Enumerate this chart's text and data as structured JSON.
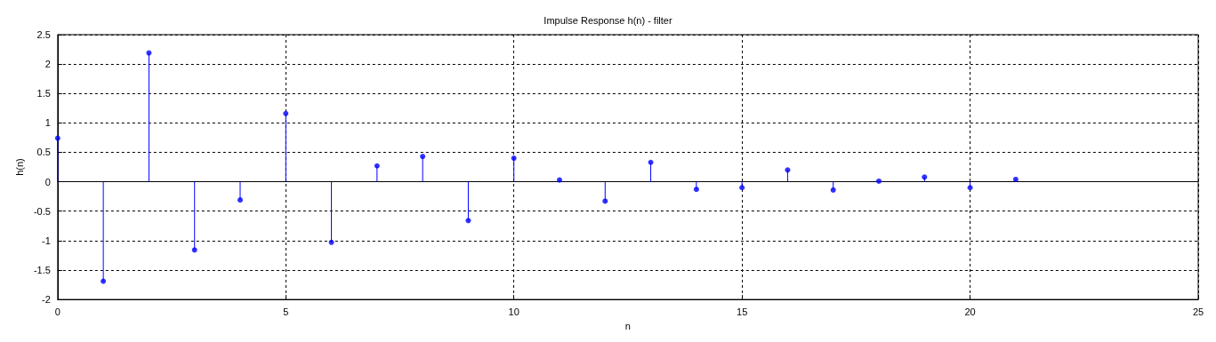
{
  "chart_data": {
    "type": "lollipop",
    "title": "Impulse Response h(n) - filter",
    "xlabel": "n",
    "ylabel": "h(n)",
    "x": [
      0,
      1,
      2,
      3,
      4,
      5,
      6,
      7,
      8,
      9,
      10,
      11,
      12,
      13,
      14,
      15,
      16,
      17,
      18,
      19,
      20,
      21
    ],
    "values": [
      0.74,
      -1.69,
      2.19,
      -1.16,
      -0.31,
      1.16,
      -1.03,
      0.27,
      0.43,
      -0.66,
      0.4,
      0.03,
      -0.33,
      0.33,
      -0.13,
      -0.1,
      0.2,
      -0.14,
      0.01,
      0.08,
      -0.1,
      0.04
    ],
    "color": "#0000ff",
    "marker": "circle",
    "xlim": [
      0,
      25
    ],
    "xticks": [
      0,
      5,
      10,
      15,
      20,
      25
    ],
    "ylim": [
      -2,
      2.5
    ],
    "yticks": [
      -2,
      -1.5,
      -1,
      -0.5,
      0,
      0.5,
      1,
      1.5,
      2,
      2.5
    ],
    "grid": true
  }
}
